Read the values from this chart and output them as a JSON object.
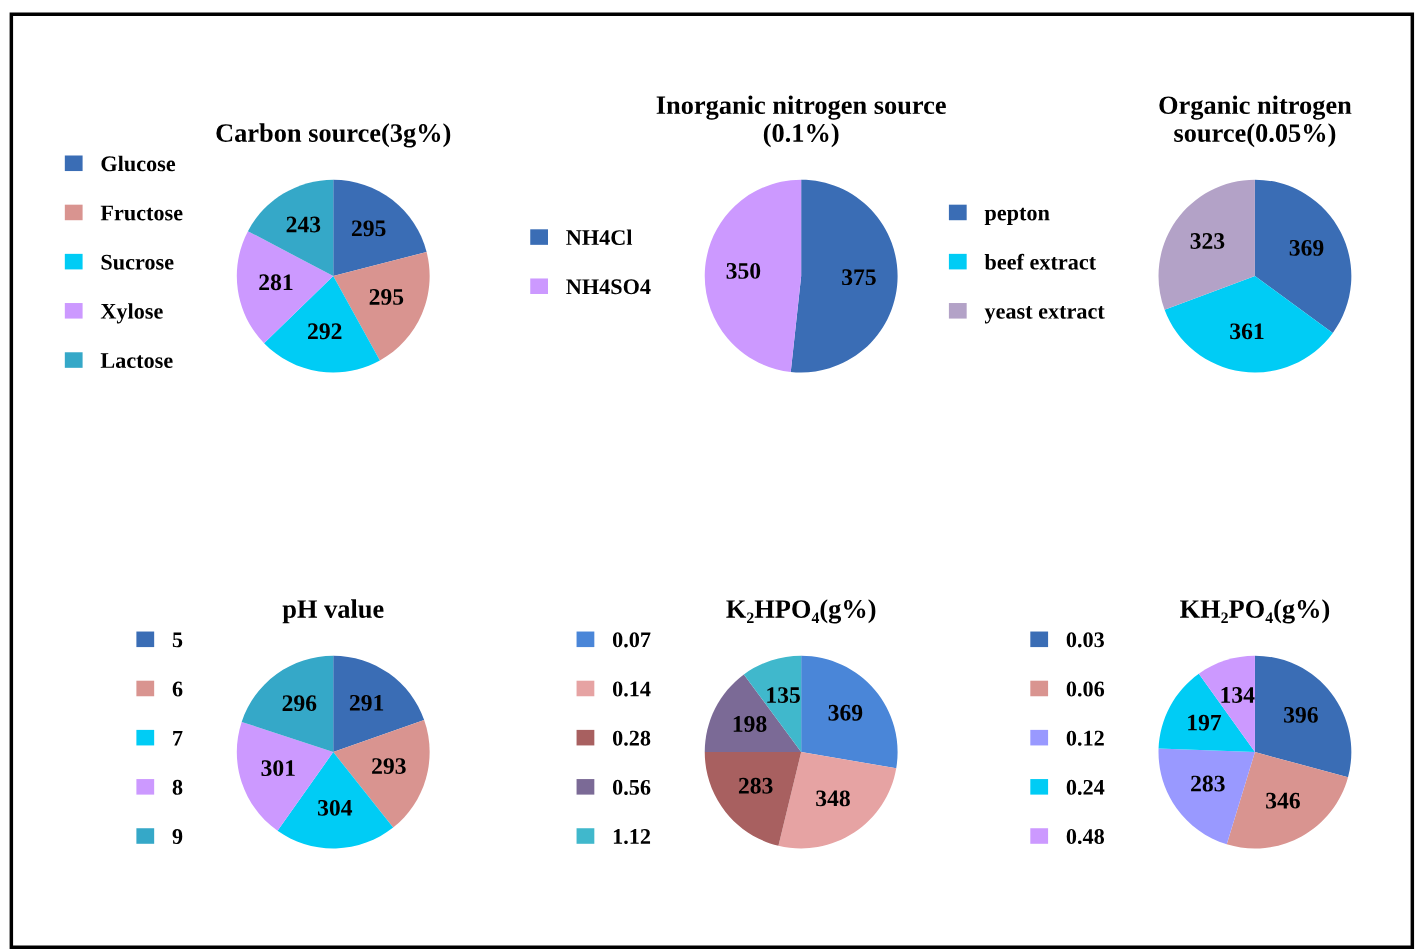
{
  "chart_data": [
    {
      "type": "pie",
      "title": "Carbon source(3g%)",
      "categories": [
        "Glucose",
        "Fructose",
        "Sucrose",
        "Xylose",
        "Lactose"
      ],
      "values": [
        295,
        295,
        292,
        281,
        243
      ],
      "colors": [
        "#3a6db5",
        "#d99490",
        "#00ccf5",
        "#cc99ff",
        "#35a8c8"
      ],
      "data_labels": true,
      "legend": "left"
    },
    {
      "type": "pie",
      "title": "Inorganic nitrogen source\n(0.1%)",
      "categories": [
        "NH4Cl",
        "NH4SO4"
      ],
      "values": [
        375,
        350
      ],
      "colors": [
        "#3a6db5",
        "#cc99ff"
      ],
      "data_labels": true,
      "legend": "left"
    },
    {
      "type": "pie",
      "title": "Organic nitrogen\nsource(0.05%)",
      "categories": [
        "pepton",
        "beef extract",
        "yeast extract"
      ],
      "values": [
        369,
        361,
        323
      ],
      "colors": [
        "#3a6db5",
        "#00ccf5",
        "#b3a2c7"
      ],
      "data_labels": true,
      "legend": "left"
    },
    {
      "type": "pie",
      "title": "pH value",
      "categories": [
        "5",
        "6",
        "7",
        "8",
        "9"
      ],
      "values": [
        291,
        293,
        304,
        301,
        296
      ],
      "colors": [
        "#3a6db5",
        "#d99490",
        "#00ccf5",
        "#cc99ff",
        "#35a8c8"
      ],
      "data_labels": true,
      "legend": "left"
    },
    {
      "type": "pie",
      "title": "K₂HPO₄(g%)",
      "categories": [
        "0.07",
        "0.14",
        "0.28",
        "0.56",
        "1.12"
      ],
      "values": [
        369,
        348,
        283,
        198,
        135
      ],
      "colors": [
        "#4a86d8",
        "#e6a3a3",
        "#a86060",
        "#7b6a96",
        "#40b8cc"
      ],
      "data_labels": true,
      "legend": "left"
    },
    {
      "type": "pie",
      "title": "KH₂PO₄(g%)",
      "categories": [
        "0.03",
        "0.06",
        "0.12",
        "0.24",
        "0.48"
      ],
      "values": [
        396,
        346,
        283,
        197,
        134
      ],
      "colors": [
        "#3a6db5",
        "#d99490",
        "#9999ff",
        "#00ccf5",
        "#cc99ff"
      ],
      "data_labels": true,
      "legend": "left"
    }
  ]
}
